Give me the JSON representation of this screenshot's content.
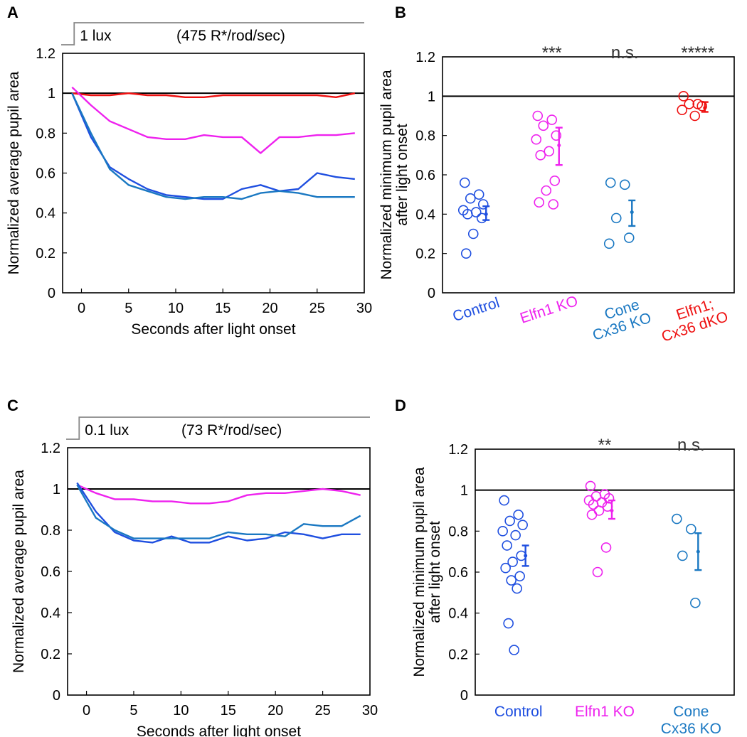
{
  "colors": {
    "control": "#1f4fe0",
    "elfn1": "#ee22ee",
    "cone_cx36": "#1a78c2",
    "dko": "#ee1111",
    "axis": "#000000",
    "stimulus": "#888888"
  },
  "chart_data": [
    {
      "panel": "A",
      "type": "line",
      "stimulus_label": "1 lux",
      "stimulus_detail": "(475 R*/rod/sec)",
      "xlabel": "Seconds after light onset",
      "ylabel": "Normalized average pupil area",
      "xlim": [
        -2,
        30
      ],
      "ylim": [
        0,
        1.2
      ],
      "xticks": [
        "0",
        "5",
        "10",
        "15",
        "20",
        "25",
        "30"
      ],
      "yticks": [
        "0",
        "0.2",
        "0.4",
        "0.6",
        "0.8",
        "1",
        "1.2"
      ],
      "reference_line": 1,
      "x": [
        -1,
        1,
        3,
        5,
        7,
        9,
        11,
        13,
        15,
        17,
        19,
        21,
        23,
        25,
        27,
        29
      ],
      "series": [
        {
          "color_key": "dko",
          "values": [
            1.0,
            0.99,
            0.99,
            1.0,
            0.99,
            0.99,
            0.98,
            0.98,
            0.99,
            0.99,
            0.99,
            0.99,
            0.99,
            0.99,
            0.98,
            1.0
          ]
        },
        {
          "color_key": "elfn1",
          "values": [
            1.03,
            0.94,
            0.86,
            0.82,
            0.78,
            0.77,
            0.77,
            0.79,
            0.78,
            0.78,
            0.7,
            0.78,
            0.78,
            0.79,
            0.79,
            0.8
          ]
        },
        {
          "color_key": "control",
          "values": [
            1.0,
            0.78,
            0.63,
            0.57,
            0.52,
            0.49,
            0.48,
            0.47,
            0.47,
            0.52,
            0.54,
            0.51,
            0.52,
            0.6,
            0.58,
            0.57
          ]
        },
        {
          "color_key": "cone_cx36",
          "values": [
            1.0,
            0.8,
            0.62,
            0.54,
            0.51,
            0.48,
            0.47,
            0.48,
            0.48,
            0.47,
            0.5,
            0.51,
            0.5,
            0.48,
            0.48,
            0.48
          ]
        }
      ]
    },
    {
      "panel": "B",
      "type": "scatter",
      "ylabel_line1": "Normalized minimum pupil area",
      "ylabel_line2": "after light onset",
      "ylim": [
        0,
        1.2
      ],
      "yticks": [
        "0",
        "0.2",
        "0.4",
        "0.6",
        "0.8",
        "1",
        "1.2"
      ],
      "reference_line": 1,
      "categories": [
        {
          "label_lines": [
            "Control"
          ],
          "color_key": "control",
          "significance": "",
          "mean": 0.4,
          "err_low": 0.37,
          "err_high": 0.44,
          "points": [
            0.56,
            0.5,
            0.48,
            0.45,
            0.42,
            0.41,
            0.4,
            0.38,
            0.3,
            0.2
          ]
        },
        {
          "label_lines": [
            "Elfn1 KO"
          ],
          "color_key": "elfn1",
          "significance": "***",
          "mean": 0.75,
          "err_low": 0.65,
          "err_high": 0.84,
          "points": [
            0.9,
            0.88,
            0.85,
            0.8,
            0.78,
            0.72,
            0.7,
            0.57,
            0.52,
            0.46,
            0.45
          ]
        },
        {
          "label_lines": [
            "Cone",
            "Cx36 KO"
          ],
          "color_key": "cone_cx36",
          "significance": "n.s.",
          "mean": 0.41,
          "err_low": 0.34,
          "err_high": 0.47,
          "points": [
            0.56,
            0.55,
            0.38,
            0.28,
            0.25
          ]
        },
        {
          "label_lines": [
            "Elfn1;",
            "Cx36 dKO"
          ],
          "color_key": "dko",
          "significance": "*****",
          "mean": 0.94,
          "err_low": 0.92,
          "err_high": 0.97,
          "points": [
            1.0,
            0.96,
            0.96,
            0.95,
            0.93,
            0.9
          ]
        }
      ]
    },
    {
      "panel": "C",
      "type": "line",
      "stimulus_label": "0.1 lux",
      "stimulus_detail": "(73 R*/rod/sec)",
      "xlabel": "Seconds after light onset",
      "ylabel": "Normalized average pupil area",
      "xlim": [
        -2,
        30
      ],
      "ylim": [
        0,
        1.2
      ],
      "xticks": [
        "0",
        "5",
        "10",
        "15",
        "20",
        "25",
        "30"
      ],
      "yticks": [
        "0",
        "0.2",
        "0.4",
        "0.6",
        "0.8",
        "1",
        "1.2"
      ],
      "reference_line": 1,
      "x": [
        -1,
        1,
        3,
        5,
        7,
        9,
        11,
        13,
        15,
        17,
        19,
        21,
        23,
        25,
        27,
        29
      ],
      "series": [
        {
          "color_key": "elfn1",
          "values": [
            1.02,
            0.98,
            0.95,
            0.95,
            0.94,
            0.94,
            0.93,
            0.93,
            0.94,
            0.97,
            0.98,
            0.98,
            0.99,
            1.0,
            0.99,
            0.97
          ]
        },
        {
          "color_key": "control",
          "values": [
            1.03,
            0.89,
            0.79,
            0.75,
            0.74,
            0.77,
            0.74,
            0.74,
            0.77,
            0.75,
            0.76,
            0.79,
            0.78,
            0.76,
            0.78,
            0.78
          ]
        },
        {
          "color_key": "cone_cx36",
          "values": [
            1.02,
            0.86,
            0.8,
            0.76,
            0.76,
            0.76,
            0.76,
            0.76,
            0.79,
            0.78,
            0.78,
            0.77,
            0.83,
            0.82,
            0.82,
            0.87
          ]
        }
      ]
    },
    {
      "panel": "D",
      "type": "scatter",
      "ylabel_line1": "Normalized minimum pupil area",
      "ylabel_line2": "after light onset",
      "ylim": [
        0,
        1.2
      ],
      "yticks": [
        "0",
        "0.2",
        "0.4",
        "0.6",
        "0.8",
        "1",
        "1.2"
      ],
      "reference_line": 1,
      "categories": [
        {
          "label_lines": [
            "Control"
          ],
          "color_key": "control",
          "significance": "",
          "mean": 0.68,
          "err_low": 0.63,
          "err_high": 0.73,
          "points": [
            0.95,
            0.88,
            0.85,
            0.83,
            0.8,
            0.78,
            0.73,
            0.68,
            0.65,
            0.62,
            0.58,
            0.56,
            0.52,
            0.35,
            0.22
          ]
        },
        {
          "label_lines": [
            "Elfn1 KO"
          ],
          "color_key": "elfn1",
          "significance": "**",
          "mean": 0.9,
          "err_low": 0.86,
          "err_high": 0.95,
          "points": [
            1.02,
            0.98,
            0.97,
            0.96,
            0.95,
            0.94,
            0.93,
            0.92,
            0.9,
            0.88,
            0.72,
            0.6
          ]
        },
        {
          "label_lines": [
            "Cone",
            "Cx36 KO"
          ],
          "color_key": "cone_cx36",
          "significance": "n.s.",
          "mean": 0.7,
          "err_low": 0.61,
          "err_high": 0.79,
          "points": [
            0.86,
            0.81,
            0.68,
            0.45
          ]
        }
      ]
    }
  ]
}
